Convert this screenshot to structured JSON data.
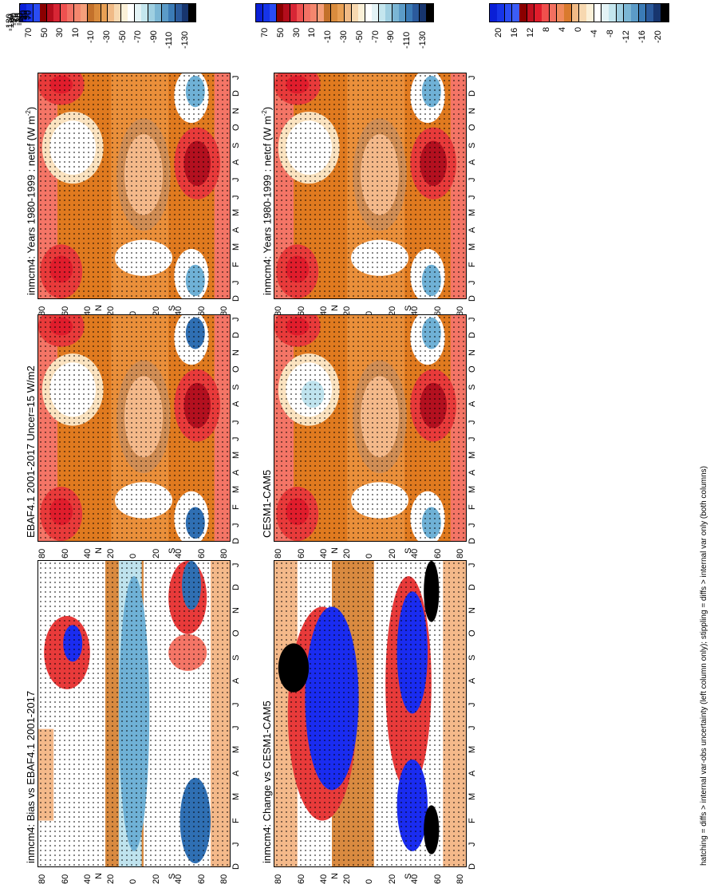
{
  "footnote": "hatching = diffs > internal var-obs uncertainty (left column only); stippling = diffs > internal var only (both columns)",
  "lat_labels": [
    "80",
    "60",
    "40",
    "20",
    "0",
    "20",
    "40",
    "60",
    "80"
  ],
  "lat_hemi": {
    "north": "N",
    "south": "S"
  },
  "month_labels": [
    "D",
    "J",
    "F",
    "M",
    "A",
    "M",
    "J",
    "J",
    "A",
    "S",
    "O",
    "N",
    "D",
    "J"
  ],
  "colorbar_abs": {
    "labels": [
      "70",
      "50",
      "30",
      "10",
      "-10",
      "-30",
      "-50",
      "-70",
      "-90",
      "-110",
      "-130"
    ],
    "colors": [
      "#0a1fd6",
      "#1634e8",
      "#2a4cf4",
      "#8b0000",
      "#b30d1c",
      "#d72635",
      "#ee5150",
      "#f27265",
      "#f4876e",
      "#f59f7a",
      "#c3712b",
      "#d98c3e",
      "#e8a055",
      "#f0ba86",
      "#f7d8b0",
      "#fbf0d8",
      "#ffffff",
      "#e3f3f6",
      "#c4e6ee",
      "#9fcfe1",
      "#7bb6d4",
      "#5b9bc7",
      "#3b7bb6",
      "#2b5a9c",
      "#17356e",
      "#000000"
    ]
  },
  "colorbar_diff": {
    "labels": [
      "20",
      "16",
      "12",
      "8",
      "4",
      "0",
      "-4",
      "-8",
      "-12",
      "-16",
      "-20"
    ],
    "colors": [
      "#0a1fd6",
      "#1634e8",
      "#2a4cf4",
      "#3c5df7",
      "#8b0000",
      "#c0101f",
      "#e01d2c",
      "#f0504d",
      "#f27060",
      "#f08a5c",
      "#d97a2e",
      "#f0ba86",
      "#f7d8b0",
      "#fbf0d8",
      "#ffffff",
      "#e3f3f6",
      "#c4e6ee",
      "#9fcfe1",
      "#7bb6d4",
      "#5b9bc7",
      "#3b7bb6",
      "#2b5a9c",
      "#17356e",
      "#000000"
    ]
  },
  "panels": [
    {
      "id": "model",
      "title": "inmcm4: Years 1980-1999 : netcf (W m",
      "title_sup": "-2",
      "title_end": ")",
      "kind": "abs"
    },
    {
      "id": "obs",
      "title": "EBAF4.1 2001-2017 Uncer=15 W/m2",
      "title_sup": "",
      "title_end": "",
      "kind": "abs"
    },
    {
      "id": "bias",
      "title": "inmcm4: Bias vs EBAF4.1 2001-2017",
      "title_sup": "",
      "title_end": "",
      "kind": "diff"
    },
    {
      "id": "model2",
      "title": "inmcm4: Years 1980-1999 : netcf (W m",
      "title_sup": "-2",
      "title_end": ")",
      "kind": "abs"
    },
    {
      "id": "cesm",
      "title": "CESM1-CAM5",
      "title_sup": "",
      "title_end": "",
      "kind": "abs"
    },
    {
      "id": "change",
      "title": "inmcm4: Change vs CESM1-CAM5",
      "title_sup": "",
      "title_end": "",
      "kind": "diff"
    }
  ],
  "chart_data": [
    {
      "type": "heatmap",
      "title": "inmcm4: Years 1980-1999 : netcf (W m-2)",
      "x_label": "",
      "y_label": "",
      "x_categories": [
        "D",
        "J",
        "F",
        "M",
        "A",
        "M",
        "J",
        "J",
        "A",
        "S",
        "O",
        "N",
        "D",
        "J"
      ],
      "y_categories": [
        "80",
        "60",
        "40",
        "N",
        "20",
        "0",
        "20",
        "S",
        "40",
        "60",
        "80"
      ],
      "color_range": [
        70,
        -130
      ]
    },
    {
      "type": "heatmap",
      "title": "EBAF4.1 2001-2017 Uncer=15 W/m2",
      "x_categories": [
        "D",
        "J",
        "F",
        "M",
        "A",
        "M",
        "J",
        "J",
        "A",
        "S",
        "O",
        "N",
        "D",
        "J"
      ],
      "color_range": [
        70,
        -130
      ]
    },
    {
      "type": "heatmap",
      "title": "inmcm4: Bias vs EBAF4.1 2001-2017",
      "x_categories": [
        "D",
        "J",
        "F",
        "M",
        "A",
        "M",
        "J",
        "J",
        "A",
        "S",
        "O",
        "N",
        "D",
        "J"
      ],
      "color_range": [
        20,
        -20
      ]
    },
    {
      "type": "heatmap",
      "title": "inmcm4: Years 1980-1999 : netcf (W m-2)",
      "x_categories": [
        "D",
        "J",
        "F",
        "M",
        "A",
        "M",
        "J",
        "J",
        "A",
        "S",
        "O",
        "N",
        "D",
        "J"
      ],
      "color_range": [
        70,
        -130
      ]
    },
    {
      "type": "heatmap",
      "title": "CESM1-CAM5",
      "x_categories": [
        "D",
        "J",
        "F",
        "M",
        "A",
        "M",
        "J",
        "J",
        "A",
        "S",
        "O",
        "N",
        "D",
        "J"
      ],
      "color_range": [
        70,
        -130
      ]
    },
    {
      "type": "heatmap",
      "title": "inmcm4: Change vs CESM1-CAM5",
      "x_categories": [
        "D",
        "J",
        "F",
        "M",
        "A",
        "M",
        "J",
        "J",
        "A",
        "S",
        "O",
        "N",
        "D",
        "J"
      ],
      "color_range": [
        20,
        -20
      ]
    }
  ]
}
